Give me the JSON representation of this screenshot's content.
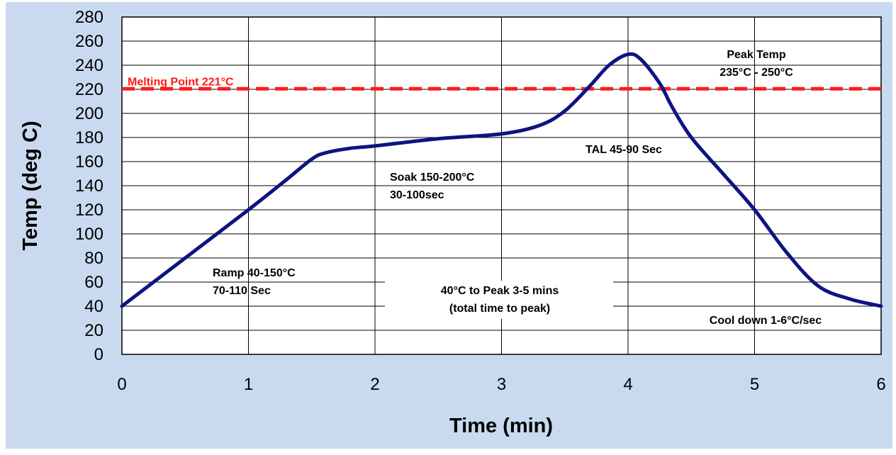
{
  "chart_data": {
    "type": "line",
    "title": "",
    "xlabel": "Time (min)",
    "ylabel": "Temp (deg C)",
    "xlim": [
      0,
      6
    ],
    "ylim": [
      0,
      280
    ],
    "x_ticks": [
      "0",
      "1",
      "2",
      "3",
      "4",
      "5",
      "6"
    ],
    "y_ticks": [
      "0",
      "20",
      "40",
      "60",
      "80",
      "100",
      "120",
      "140",
      "160",
      "180",
      "200",
      "220",
      "240",
      "260",
      "280"
    ],
    "grid": true,
    "legend": "none",
    "series": [
      {
        "color": "#0d1480",
        "x": [
          0,
          0.5,
          1,
          1.3,
          1.5,
          1.6,
          1.8,
          2,
          2.5,
          3,
          3.3,
          3.5,
          3.7,
          3.85,
          4,
          4.1,
          4.25,
          4.35,
          4.5,
          4.75,
          5,
          5.25,
          5.5,
          5.75,
          6
        ],
        "y": [
          40,
          80,
          120,
          145,
          162,
          167,
          171,
          173,
          179,
          183,
          190,
          202,
          223,
          240,
          249,
          245,
          225,
          205,
          180,
          150,
          120,
          85,
          57,
          46,
          40
        ]
      }
    ],
    "reference_lines": [
      {
        "y": 221,
        "label": "Melting Point 221°C",
        "color": "#ff1a1a",
        "style": "dashed"
      }
    ],
    "annotations": [
      {
        "lines": [
          "Peak Temp",
          "235°C - 250°C"
        ],
        "color": "#000000"
      },
      {
        "lines": [
          "TAL 45-90 Sec"
        ],
        "color": "#000000"
      },
      {
        "lines": [
          "Soak 150-200°C",
          "30-100sec"
        ],
        "color": "#000000"
      },
      {
        "lines": [
          "Ramp 40-150°C",
          "70-110 Sec"
        ],
        "color": "#000000"
      },
      {
        "lines": [
          "40°C to Peak 3-5 mins",
          "(total time to peak)"
        ],
        "color": "#1a1aff"
      },
      {
        "lines": [
          "Cool down 1-6°C/sec"
        ],
        "color": "#000000"
      }
    ],
    "colors": {
      "background": "#c9daf0",
      "plot_area": "#ffffff",
      "curve": "#0d1480",
      "melting_line": "#ff1a1a",
      "span_text": "#1a1aff"
    }
  }
}
